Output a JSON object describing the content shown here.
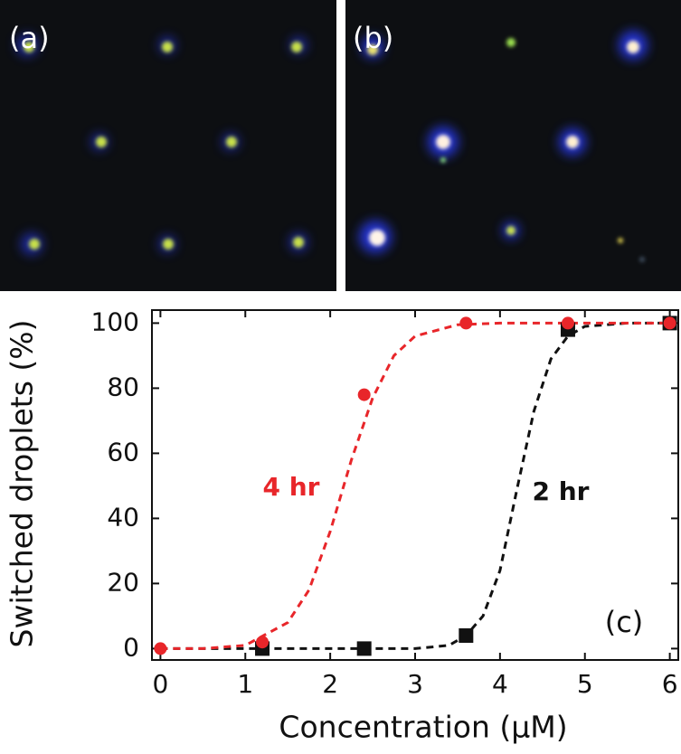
{
  "panels": [
    {
      "label": "(a)"
    },
    {
      "label": "(b)"
    }
  ],
  "chart_data": {
    "type": "scatter",
    "x_label": "Concentration (μM)",
    "y_label": "Switched droplets (%)",
    "xlim": [
      -0.1,
      6.1
    ],
    "xticks": [
      0,
      1,
      2,
      3,
      4,
      5,
      6
    ],
    "ylim": [
      -3.5,
      104
    ],
    "yticks": [
      0,
      20,
      40,
      60,
      80,
      100
    ],
    "series": [
      {
        "name": "2 hr",
        "color": "#111111",
        "marker": "square",
        "x": [
          1.2,
          2.4,
          3.6,
          4.8,
          6
        ],
        "values": [
          0,
          0,
          4,
          98,
          100
        ]
      },
      {
        "name": "4 hr",
        "color": "#e8262a",
        "marker": "circle",
        "x": [
          0,
          1.2,
          2.4,
          3.6,
          4.8,
          6
        ],
        "values": [
          0,
          2,
          78,
          100,
          100,
          100
        ]
      }
    ],
    "fits": [
      {
        "color": "#111111",
        "x": [
          0,
          1,
          2,
          3,
          3.4,
          3.6,
          3.8,
          4,
          4.2,
          4.4,
          4.6,
          4.8,
          5,
          5.5,
          6
        ],
        "values": [
          0,
          0,
          0,
          0,
          1,
          4,
          10,
          24,
          49,
          73,
          89,
          96,
          99,
          100,
          100
        ]
      },
      {
        "color": "#e8262a",
        "x": [
          0,
          0.5,
          1,
          1.5,
          1.75,
          2,
          2.25,
          2.5,
          2.75,
          3,
          3.5,
          4,
          5,
          6
        ],
        "values": [
          0,
          0,
          1,
          8,
          18,
          36,
          58,
          77,
          90,
          96,
          99.5,
          100,
          100,
          100
        ]
      }
    ],
    "annotations": [
      {
        "text": "4 hr",
        "color": "#e8262a"
      },
      {
        "text": "2 hr",
        "color": "#111111"
      },
      {
        "text": "(c)",
        "color": "#111111"
      }
    ]
  }
}
